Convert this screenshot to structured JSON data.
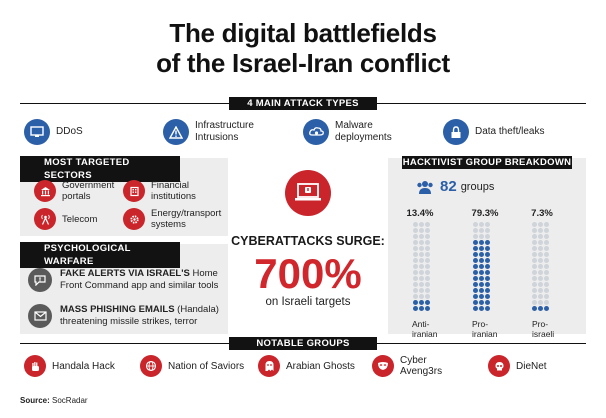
{
  "title_line1": "The digital battlefields",
  "title_line2": "of the Israel-Iran conflict",
  "attack_header": "4 MAIN ATTACK TYPES",
  "attacks": [
    {
      "label": "DDoS",
      "icon": "monitor-icon"
    },
    {
      "label": "Infrastructure\nIntrusions",
      "icon": "warning-icon"
    },
    {
      "label": "Malware\ndeployments",
      "icon": "cloud-bug-icon"
    },
    {
      "label": "Data theft/leaks",
      "icon": "lock-icon"
    }
  ],
  "sectors_header": "MOST TARGETED SECTORS",
  "sectors": [
    {
      "label": "Government\nportals",
      "icon": "government-icon"
    },
    {
      "label": "Financial\ninstitutions",
      "icon": "bank-icon"
    },
    {
      "label": "Telecom",
      "icon": "antenna-icon"
    },
    {
      "label": "Energy/transport\nsystems",
      "icon": "gear-icon"
    }
  ],
  "psy_header": "PSYCHOLOGICAL WARFARE",
  "psy": [
    {
      "bold": "FAKE ALERTS VIA ISRAEL'S",
      "rest": " Home Front Command app and similar tools",
      "icon": "alert-bubble-icon"
    },
    {
      "bold": "MASS PHISHING EMAILS",
      "rest": " (Handala) threatening missile strikes, terror",
      "icon": "envelope-icon"
    }
  ],
  "surge_label": "CYBERATTACKS SURGE:",
  "surge_value": "700%",
  "surge_target": "on Israeli targets",
  "hacktivist_header": "HACKTIVIST GROUP BREAKDOWN",
  "groups_count": "82",
  "groups_unit": "groups",
  "chart_data": {
    "type": "bar",
    "title": "HACKTIVIST GROUP BREAKDOWN",
    "categories": [
      "Anti-\niranian",
      "Pro-\niranian",
      "Pro-\nisraeli"
    ],
    "values": [
      13.4,
      79.3,
      7.3
    ],
    "value_labels": [
      "13.4%",
      "79.3%",
      "7.3%"
    ],
    "total_groups": 82,
    "colors": {
      "filled": "#2b5fa8",
      "empty": "#cfd3da"
    }
  },
  "notable_header": "NOTABLE GROUPS",
  "notable": [
    {
      "label": "Handala Hack",
      "icon": "hand-icon"
    },
    {
      "label": "Nation of Saviors",
      "icon": "globe-icon"
    },
    {
      "label": "Arabian Ghosts",
      "icon": "ghost-icon"
    },
    {
      "label": "Cyber\nAveng3rs",
      "icon": "mask-icon"
    },
    {
      "label": "DieNet",
      "icon": "skull-icon"
    }
  ],
  "source_label": "Source:",
  "source_value": " SocRadar",
  "colors": {
    "accent_red": "#c9252b",
    "accent_blue": "#2b5fa8",
    "panel_gray": "#ededed",
    "band_black": "#121212"
  }
}
